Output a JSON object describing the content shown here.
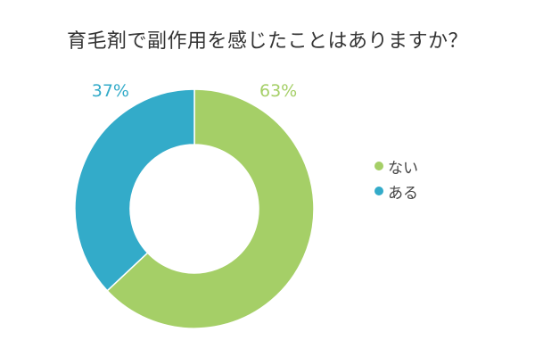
{
  "chart_data": {
    "type": "pie",
    "title": "育毛剤で副作用を感じたことはありますか？",
    "categories": [
      "ない",
      "ある"
    ],
    "values": [
      63,
      37
    ],
    "value_labels": [
      "63%",
      "37%"
    ],
    "unit": "%",
    "colors": [
      "#a5cf67",
      "#33abc9"
    ],
    "legend_position": "right",
    "donut": true
  }
}
